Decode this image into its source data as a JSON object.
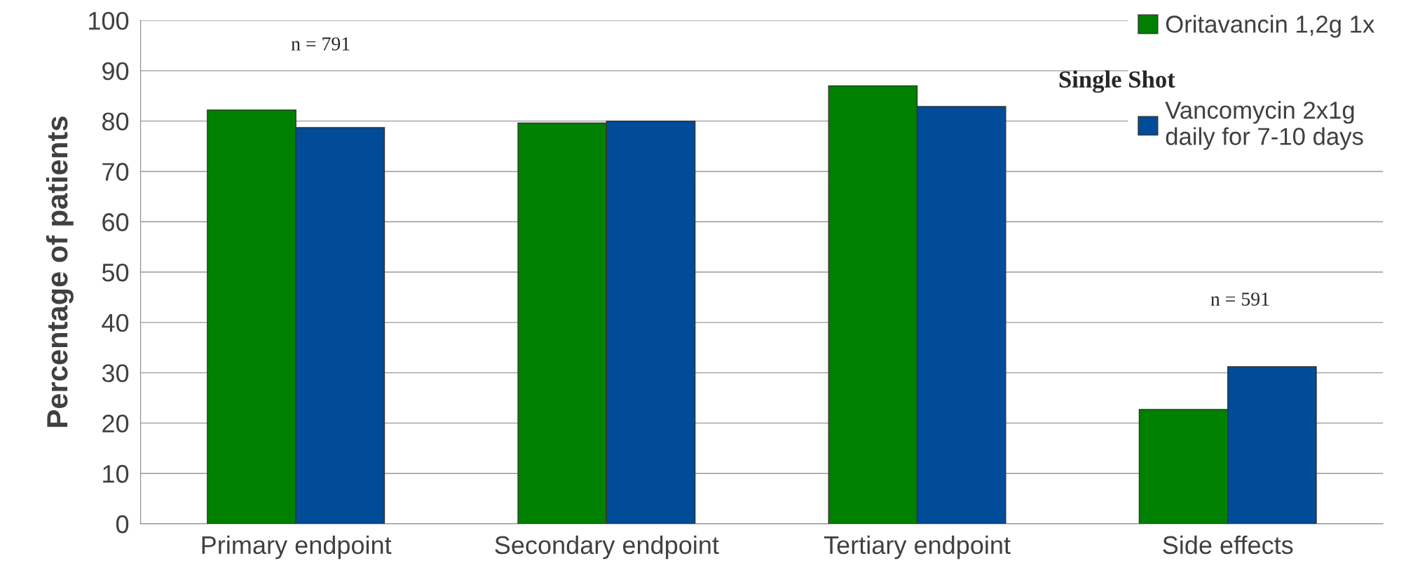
{
  "chart_data": {
    "type": "bar",
    "ylabel": "Percentage of patients",
    "categories": [
      "Primary endpoint",
      "Secondary endpoint",
      "Tertiary endpoint",
      "Side effects"
    ],
    "series": [
      {
        "name": "Oritavancin 1,2g 1x",
        "color": "#008000",
        "values": [
          82.2,
          79.6,
          87.0,
          22.7
        ]
      },
      {
        "name": "Vancomycin 2x1g\ndaily for 7-10 days",
        "color": "#004c99",
        "values": [
          78.7,
          80.0,
          82.9,
          31.2
        ]
      }
    ],
    "ylim": [
      0,
      100
    ],
    "yticks": [
      0,
      10,
      20,
      30,
      40,
      50,
      60,
      70,
      80,
      90,
      100
    ],
    "grid": "y",
    "legend": "top right",
    "annotations": [
      "n = 791",
      "n = 591",
      "Single Shot"
    ]
  }
}
